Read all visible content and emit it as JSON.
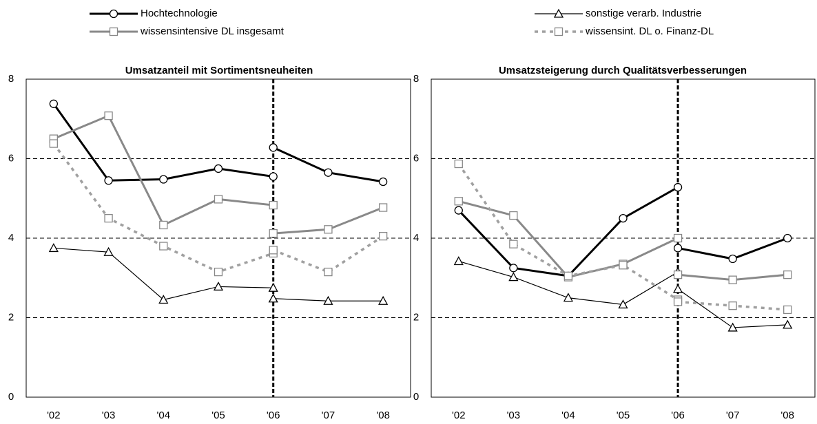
{
  "chart_data": [
    {
      "type": "line",
      "title": "Umsatzanteil mit Sortimentsneuheiten",
      "categories": [
        "'02",
        "'03",
        "'04",
        "'05",
        "'06",
        "'07",
        "'08"
      ],
      "ylim": [
        0,
        8
      ],
      "yticks": [
        0,
        2,
        4,
        6,
        8
      ],
      "grid": true,
      "legend": "top",
      "series": [
        {
          "name": "Hochtechnologie",
          "color": "#000000",
          "style": "thick",
          "marker": "circle",
          "values": [
            7.38,
            5.45,
            5.48,
            5.75,
            5.55,
            null,
            null
          ],
          "values_new": [
            null,
            null,
            null,
            null,
            6.28,
            5.65,
            5.42
          ]
        },
        {
          "name": "sonstige verarb. Industrie",
          "color": "#000000",
          "style": "thin",
          "marker": "triangle",
          "values": [
            3.75,
            3.65,
            2.45,
            2.78,
            2.75,
            null,
            null
          ],
          "values_new": [
            null,
            null,
            null,
            null,
            2.48,
            2.42,
            2.42
          ]
        },
        {
          "name": "wissensintensive DL insgesamt",
          "color": "#898989",
          "style": "thick",
          "marker": "square",
          "values": [
            6.5,
            7.08,
            4.33,
            4.98,
            4.83,
            null,
            null
          ],
          "values_new": [
            null,
            null,
            null,
            null,
            4.12,
            4.22,
            4.77
          ]
        },
        {
          "name": "wissensint. DL o. Finanz-DL",
          "color": "#a0a0a0",
          "style": "dashed",
          "marker": "square",
          "values": [
            6.38,
            4.5,
            3.8,
            3.15,
            3.62,
            null,
            null
          ],
          "values_new": [
            null,
            null,
            null,
            null,
            3.7,
            3.15,
            4.05
          ]
        }
      ]
    },
    {
      "type": "line",
      "title": "Umsatzsteigerung durch Qualitätsverbesserungen",
      "categories": [
        "'02",
        "'03",
        "'04",
        "'05",
        "'06",
        "'07",
        "'08"
      ],
      "ylim": [
        0,
        8
      ],
      "yticks": [
        0,
        2,
        4,
        6,
        8
      ],
      "grid": true,
      "series": [
        {
          "color": "#000000",
          "style": "thick",
          "marker": "circle",
          "values": [
            4.7,
            3.25,
            3.05,
            4.5,
            5.28,
            null,
            null
          ],
          "values_new": [
            null,
            null,
            null,
            null,
            3.75,
            3.48,
            4.0
          ]
        },
        {
          "color": "#000000",
          "style": "thin",
          "marker": "triangle",
          "values": [
            3.42,
            3.02,
            2.5,
            2.33,
            3.15,
            null,
            null
          ],
          "values_new": [
            null,
            null,
            null,
            null,
            2.72,
            1.75,
            1.82
          ]
        },
        {
          "color": "#898989",
          "style": "thick",
          "marker": "square",
          "values": [
            4.93,
            4.57,
            3.02,
            3.35,
            4.0,
            null,
            null
          ],
          "values_new": [
            null,
            null,
            null,
            null,
            3.08,
            2.95,
            3.08
          ]
        },
        {
          "color": "#a0a0a0",
          "style": "dashed",
          "marker": "square",
          "values": [
            5.87,
            3.85,
            3.05,
            3.32,
            2.45,
            null,
            null
          ],
          "values_new": [
            null,
            null,
            null,
            null,
            2.4,
            2.3,
            2.2
          ]
        }
      ]
    }
  ]
}
